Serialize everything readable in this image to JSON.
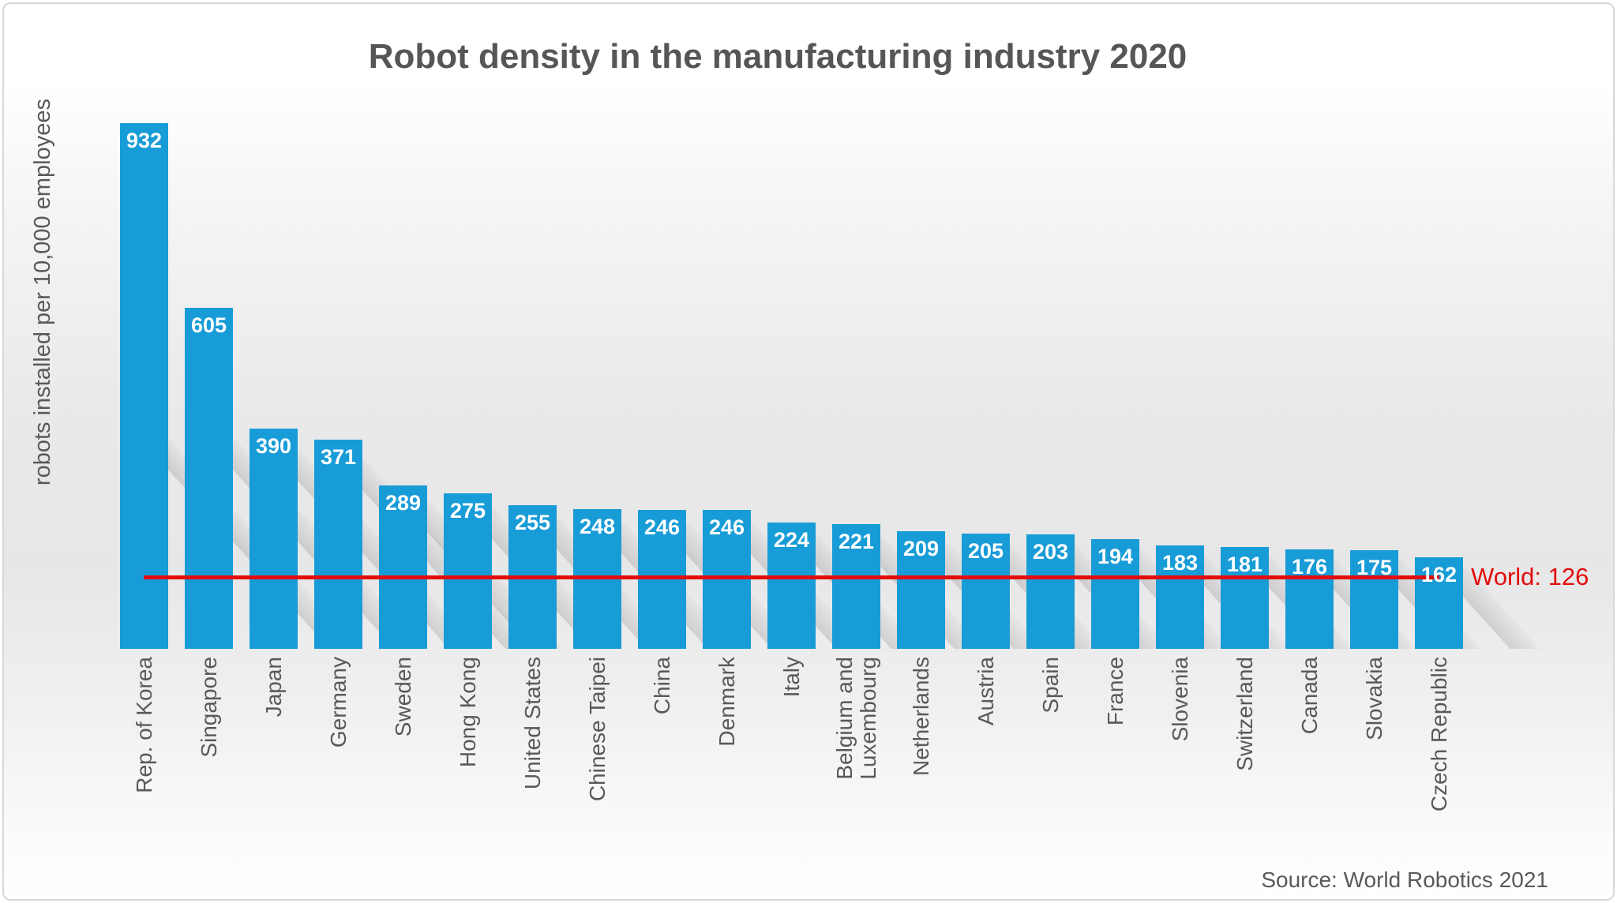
{
  "source": "Source: World Robotics 2021",
  "world_line": {
    "label": "World: 126",
    "value": 126
  },
  "colors": {
    "bar": "#189cd7",
    "world_line_red": "#e20d0d",
    "title_gray": "#565658",
    "axis_label_gray": "#595959",
    "value_label_white": "#ffffff"
  },
  "chart_data": {
    "type": "bar",
    "title": "Robot density in the manufacturing industry 2020",
    "ylabel": "robots installed per 10,000 employees",
    "xlabel": "",
    "categories": [
      "Rep. of Korea",
      "Singapore",
      "Japan",
      "Germany",
      "Sweden",
      "Hong Kong",
      "United States",
      "Chinese Taipei",
      "China",
      "Denmark",
      "Italy",
      "Belgium and\nLuxembourg",
      "Netherlands",
      "Austria",
      "Spain",
      "France",
      "Slovenia",
      "Switzerland",
      "Canada",
      "Slovakia",
      "Czech Republic"
    ],
    "values": [
      932,
      605,
      390,
      371,
      289,
      275,
      255,
      248,
      246,
      246,
      224,
      221,
      209,
      205,
      203,
      194,
      183,
      181,
      176,
      175,
      162
    ],
    "value_labels": "inside-top-white-bold",
    "ylim": [
      0,
      980
    ],
    "grid": false,
    "legend": "none",
    "annotations": [
      {
        "type": "horizontal-line",
        "value": 126,
        "label": "World: 126",
        "color": "#e20d0d",
        "label_position": "right"
      }
    ]
  }
}
